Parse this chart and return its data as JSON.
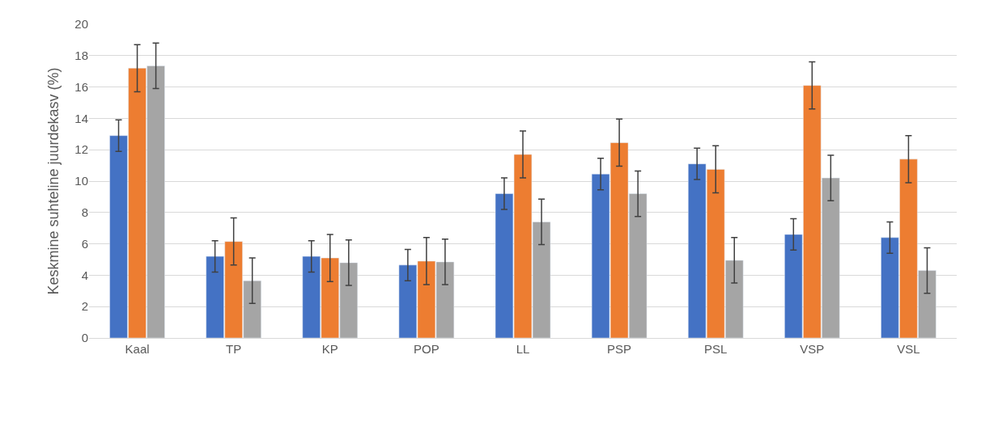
{
  "chart_data": {
    "type": "bar",
    "ylabel": "Keskmine suhteline juurdekasv (%)",
    "categories": [
      "Kaal",
      "TP",
      "KP",
      "POP",
      "LL",
      "PSP",
      "PSL",
      "VSP",
      "VSL"
    ],
    "series": [
      {
        "color": "#4472c4",
        "values": [
          12.9,
          5.2,
          5.2,
          4.65,
          9.2,
          10.45,
          11.1,
          6.6,
          6.4
        ],
        "errors": [
          1,
          1,
          1,
          1,
          1,
          1,
          1,
          1,
          1
        ]
      },
      {
        "color": "#ed7d31",
        "values": [
          17.2,
          6.15,
          5.1,
          4.9,
          11.7,
          12.45,
          10.75,
          16.1,
          11.4
        ],
        "errors": [
          1.5,
          1.5,
          1.5,
          1.5,
          1.5,
          1.5,
          1.5,
          1.5,
          1.5
        ]
      },
      {
        "color": "#a5a5a5",
        "values": [
          17.35,
          3.65,
          4.8,
          4.85,
          7.4,
          9.2,
          4.95,
          10.2,
          4.3
        ],
        "errors": [
          1.45,
          1.45,
          1.45,
          1.45,
          1.45,
          1.45,
          1.45,
          1.45,
          1.45
        ]
      }
    ],
    "ylim": [
      0,
      20
    ],
    "yticks": [
      0,
      2,
      4,
      6,
      8,
      10,
      12,
      14,
      16,
      18,
      20
    ],
    "grid": "y"
  }
}
